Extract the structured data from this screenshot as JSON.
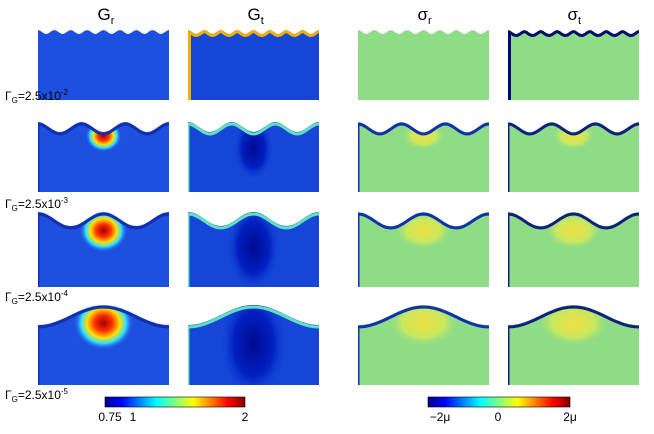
{
  "columns": [
    {
      "symbol": "G",
      "sub": "r"
    },
    {
      "symbol": "G",
      "sub": "t"
    },
    {
      "symbol": "σ",
      "sub": "r"
    },
    {
      "symbol": "σ",
      "sub": "t"
    }
  ],
  "rows": [
    {
      "symbol": "Γ",
      "sub": "G",
      "text": "=2.5x10",
      "exp": "-2"
    },
    {
      "symbol": "Γ",
      "sub": "G",
      "text": "=2.5x10",
      "exp": "-3"
    },
    {
      "symbol": "Γ",
      "sub": "G",
      "text": "=2.5x10",
      "exp": "-4"
    },
    {
      "symbol": "Γ",
      "sub": "G",
      "text": "=2.5x10",
      "exp": "-5"
    }
  ],
  "colorbars": [
    {
      "ticks": [
        "0.75",
        "1",
        "2"
      ]
    },
    {
      "ticks": [
        "−2μ",
        "0",
        "2μ"
      ]
    }
  ]
}
